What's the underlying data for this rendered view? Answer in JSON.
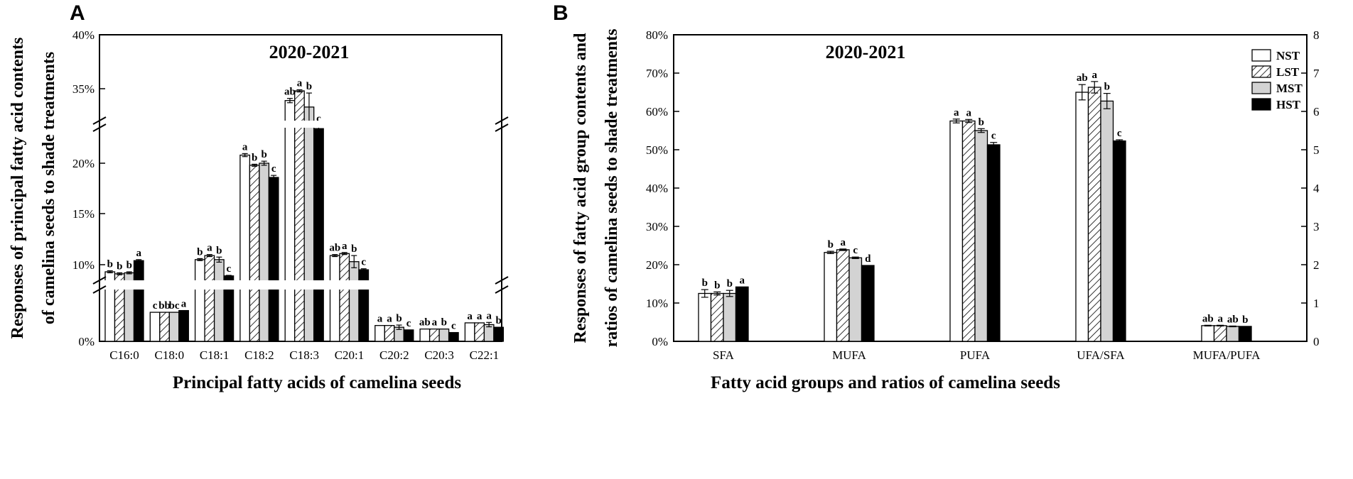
{
  "colors": {
    "NST": "#ffffff",
    "LST": "hatch",
    "MST": "#d3d3d3",
    "HST": "#000000",
    "axis": "#000000"
  },
  "chart_data": [
    {
      "panel": "A",
      "type": "bar",
      "title": "2020-2021",
      "xlabel": "Principal fatty acids of camelina seeds",
      "ylabel": [
        "Responses of  principal fatty acid contents",
        "of camelina seeds to shade treatments"
      ],
      "broken_axis": true,
      "yticks": [
        "0%",
        "10%",
        "15%",
        "20%",
        "35%",
        "40%"
      ],
      "categories": [
        "C16:0",
        "C18:0",
        "C18:1",
        "C18:2",
        "C18:3",
        "C20:1",
        "C20:2",
        "C20:3",
        "C22:1"
      ],
      "series": [
        {
          "name": "NST",
          "values": [
            9.3,
            3.3,
            10.5,
            20.8,
            33.9,
            10.9,
            1.8,
            1.4,
            2.1
          ],
          "errors": [
            0.1,
            0.0,
            0.1,
            0.15,
            0.2,
            0.1,
            0.0,
            0.0,
            0.0
          ]
        },
        {
          "name": "LST",
          "values": [
            9.1,
            3.3,
            10.9,
            19.8,
            34.8,
            11.1,
            1.8,
            1.4,
            2.1
          ],
          "errors": [
            0.1,
            0.0,
            0.1,
            0.1,
            0.1,
            0.1,
            0.0,
            0.0,
            0.0
          ]
        },
        {
          "name": "MST",
          "values": [
            9.2,
            3.3,
            10.5,
            20.0,
            33.3,
            10.3,
            1.6,
            1.4,
            1.9
          ],
          "errors": [
            0.1,
            0.0,
            0.25,
            0.2,
            1.3,
            0.6,
            0.25,
            0.0,
            0.25
          ]
        },
        {
          "name": "HST",
          "values": [
            10.4,
            3.5,
            8.9,
            18.6,
            31.3,
            9.5,
            1.3,
            1.0,
            1.6
          ],
          "errors": [
            0.1,
            0.0,
            0.05,
            0.2,
            0.3,
            0.1,
            0.0,
            0.0,
            0.0
          ]
        }
      ],
      "letters": [
        [
          "b",
          "b",
          "b",
          "a"
        ],
        [
          "c",
          "bb",
          "bc",
          "a"
        ],
        [
          "b",
          "a",
          "b",
          "c"
        ],
        [
          "a",
          "b",
          "b",
          "c"
        ],
        [
          "ab",
          "a",
          "b",
          "c"
        ],
        [
          "ab",
          "a",
          "b",
          "c"
        ],
        [
          "a",
          "a",
          "b",
          "c"
        ],
        [
          "ab",
          "a",
          "b",
          "c"
        ],
        [
          "a",
          "a",
          "a",
          "b"
        ]
      ]
    },
    {
      "panel": "B",
      "type": "bar",
      "title": "2020-2021",
      "xlabel": "Fatty acid groups and ratios  of camelina seeds",
      "ylabel": [
        "Responses of fatty acid group contents and",
        "ratios of camelina seeds to shade treatments"
      ],
      "ylim": [
        0,
        80
      ],
      "yticks": [
        "0%",
        "10%",
        "20%",
        "30%",
        "40%",
        "50%",
        "60%",
        "70%",
        "80%"
      ],
      "y2lim": [
        0,
        8
      ],
      "y2ticks": [
        "0",
        "1",
        "2",
        "3",
        "4",
        "5",
        "6",
        "7",
        "8"
      ],
      "categories": [
        "SFA",
        "MUFA",
        "PUFA",
        "UFA/SFA",
        "MUFA/PUFA"
      ],
      "secondary_axis_categories": [
        "UFA/SFA",
        "MUFA/PUFA"
      ],
      "series": [
        {
          "name": "NST",
          "values": [
            12.5,
            23.2,
            57.5,
            6.5,
            0.41
          ],
          "errors": [
            1.0,
            0.3,
            0.5,
            0.2,
            0.01
          ]
        },
        {
          "name": "LST",
          "values": [
            12.5,
            23.9,
            57.5,
            6.63,
            0.41
          ],
          "errors": [
            0.4,
            0.2,
            0.4,
            0.15,
            0.01
          ]
        },
        {
          "name": "MST",
          "values": [
            12.5,
            21.8,
            55.0,
            6.27,
            0.39
          ],
          "errors": [
            0.8,
            0.2,
            0.5,
            0.2,
            0.01
          ]
        },
        {
          "name": "HST",
          "values": [
            14.2,
            19.8,
            51.3,
            5.23,
            0.39
          ],
          "errors": [
            0.0,
            0.0,
            0.6,
            0.03,
            0.0
          ]
        }
      ],
      "letters": [
        [
          "b",
          "b",
          "b",
          "a"
        ],
        [
          "b",
          "a",
          "c",
          "d"
        ],
        [
          "a",
          "a",
          "b",
          "c"
        ],
        [
          "ab",
          "a",
          "b",
          "c"
        ],
        [
          "ab",
          "a",
          "ab",
          "b"
        ]
      ],
      "legend": [
        "NST",
        "LST",
        "MST",
        "HST"
      ],
      "legend_position": "top-right"
    }
  ]
}
